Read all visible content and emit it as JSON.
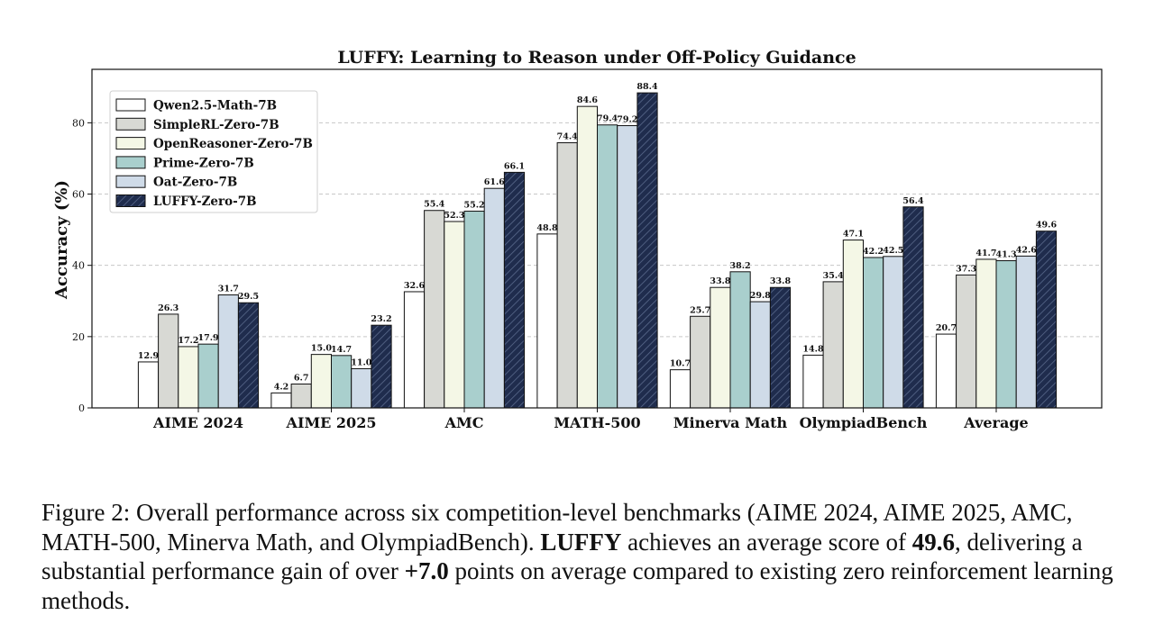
{
  "chart_data": {
    "type": "bar",
    "title": "LUFFY: Learning to Reason under Off-Policy Guidance",
    "xlabel": "",
    "ylabel": "Accuracy (%)",
    "ylim": [
      0,
      95
    ],
    "yticks": [
      0,
      20,
      40,
      60,
      80
    ],
    "grid": true,
    "legend_position": "top-left",
    "categories": [
      "AIME 2024",
      "AIME 2025",
      "AMC",
      "MATH-500",
      "Minerva Math",
      "OlympiadBench",
      "Average"
    ],
    "series": [
      {
        "name": "Qwen2.5-Math-7B",
        "color": "#ffffff",
        "hatch": false,
        "values": [
          12.9,
          4.2,
          32.6,
          48.8,
          10.7,
          14.8,
          20.7
        ]
      },
      {
        "name": "SimpleRL-Zero-7B",
        "color": "#d8d9d4",
        "hatch": false,
        "values": [
          26.3,
          6.7,
          55.4,
          74.4,
          25.7,
          35.4,
          37.3
        ]
      },
      {
        "name": "OpenReasoner-Zero-7B",
        "color": "#f4f7e6",
        "hatch": false,
        "values": [
          17.2,
          15.0,
          52.3,
          84.6,
          33.8,
          47.1,
          41.7
        ]
      },
      {
        "name": "Prime-Zero-7B",
        "color": "#a9cfcd",
        "hatch": false,
        "values": [
          17.9,
          14.7,
          55.2,
          79.4,
          38.2,
          42.2,
          41.3
        ]
      },
      {
        "name": "Oat-Zero-7B",
        "color": "#cfdbe8",
        "hatch": false,
        "values": [
          31.7,
          11.0,
          61.6,
          79.2,
          29.8,
          42.5,
          42.6
        ]
      },
      {
        "name": "LUFFY-Zero-7B",
        "color": "#1f2c4d",
        "hatch": true,
        "values": [
          29.5,
          23.2,
          66.1,
          88.4,
          33.8,
          56.4,
          49.6
        ]
      }
    ],
    "value_labels": [
      [
        "12.9",
        "4.2",
        "32.6",
        "48.8",
        "10.7",
        "14.8",
        "20.7"
      ],
      [
        "26.3",
        "6.7",
        "55.4",
        "74.4",
        "25.7",
        "35.4",
        "37.3"
      ],
      [
        "17.2",
        "15.0",
        "52.3",
        "84.6",
        "33.8",
        "47.1",
        "41.7"
      ],
      [
        "17.9",
        "14.7",
        "55.2",
        "79.4",
        "38.2",
        "42.2",
        "41.3"
      ],
      [
        "31.7",
        "11.0",
        "61.6",
        "79.2",
        "29.8",
        "42.5",
        "42.6"
      ],
      [
        "29.5",
        "23.2",
        "66.1",
        "88.4",
        "33.8",
        "56.4",
        "49.6"
      ]
    ]
  },
  "caption": {
    "prefix": "Figure 2: Overall performance across six competition-level benchmarks (AIME 2024, AIME 2025, AMC, MATH-500, Minerva Math, and OlympiadBench). ",
    "bold1": "LUFFY",
    "mid1": " achieves an average score of ",
    "bold2": "49.6",
    "mid2": ", delivering a substantial performance gain of over ",
    "bold3": "+7.0",
    "suffix": " points on average compared to existing zero reinforcement learning methods."
  }
}
